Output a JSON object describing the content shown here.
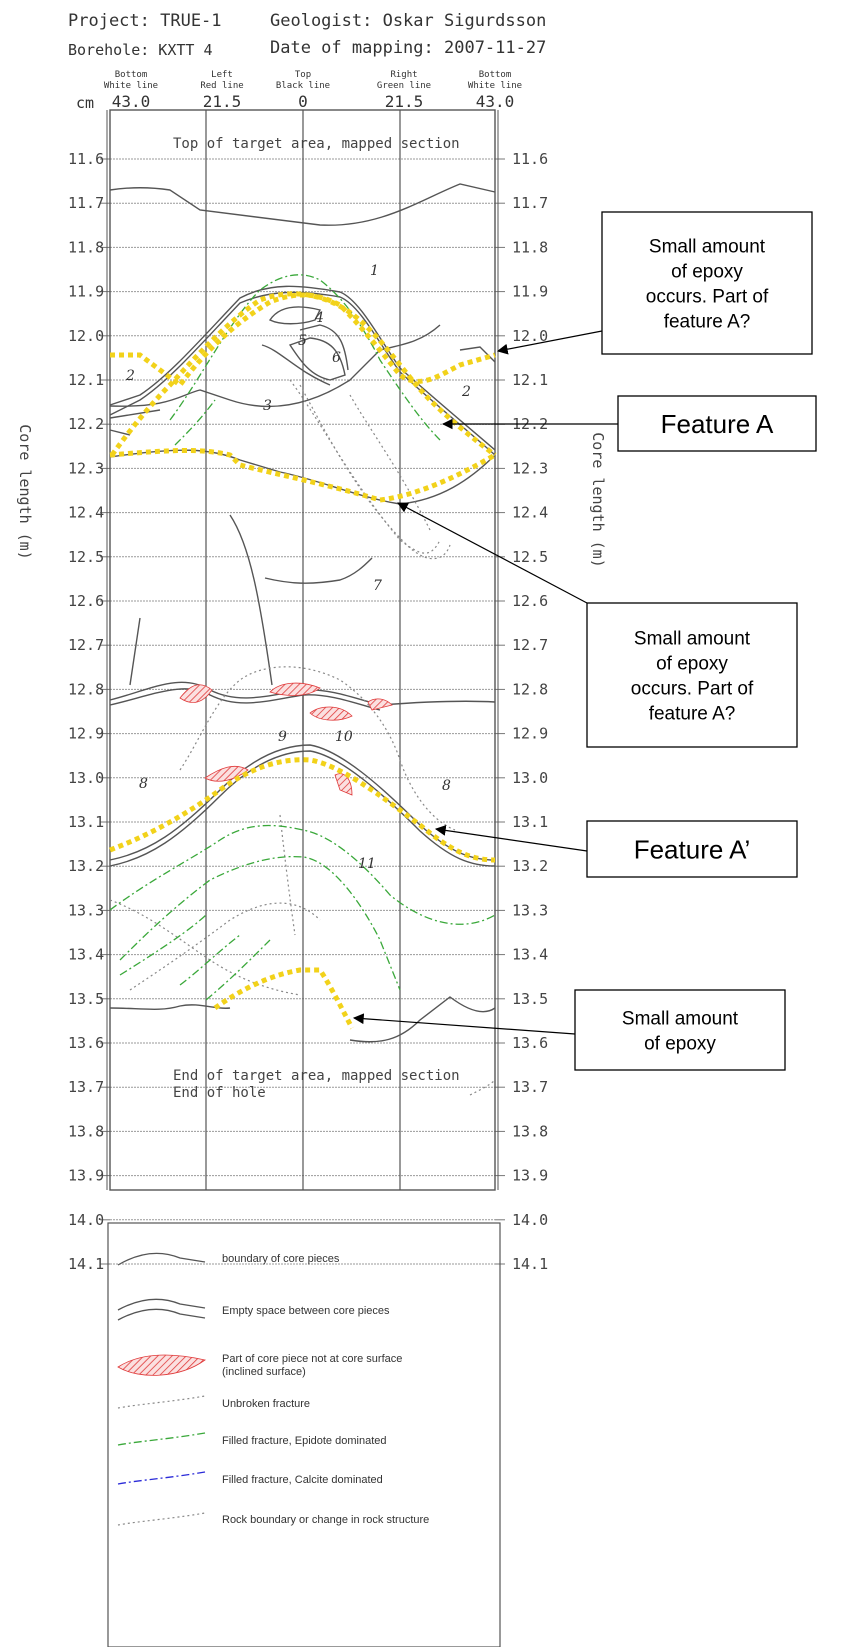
{
  "header": {
    "project": "Project: TRUE-1",
    "geologist": "Geologist: Oskar Sigurdsson",
    "borehole": "Borehole: KXTT 4",
    "date": "Date of mapping: 2007-11-27"
  },
  "columns": [
    {
      "top": "Bottom",
      "line": "White line",
      "value": "43.0"
    },
    {
      "top": "Left",
      "line": "Red line",
      "value": "21.5"
    },
    {
      "top": "Top",
      "line": "Black line",
      "value": "0"
    },
    {
      "top": "Right",
      "line": "Green line",
      "value": "21.5"
    },
    {
      "top": "Bottom",
      "line": "White line",
      "value": "43.0"
    }
  ],
  "unit": "cm",
  "axis_label": "Core length (m)",
  "depths": [
    "11.6",
    "11.7",
    "11.8",
    "11.9",
    "12.0",
    "12.1",
    "12.2",
    "12.3",
    "12.4",
    "12.5",
    "12.6",
    "12.7",
    "12.8",
    "12.9",
    "13.0",
    "13.1",
    "13.2",
    "13.3",
    "13.4",
    "13.5",
    "13.6",
    "13.7",
    "13.8",
    "13.9",
    "14.0",
    "14.1"
  ],
  "notes": {
    "top": "Top of target area, mapped section",
    "end1": "End of target area, mapped section",
    "end2": "End of hole"
  },
  "piece_numbers": [
    "1",
    "2",
    "3",
    "4",
    "5",
    "6",
    "2",
    "7",
    "8",
    "9",
    "10",
    "8",
    "11"
  ],
  "callouts": [
    {
      "lines": [
        "Small amount",
        "of epoxy",
        "occurs. Part of",
        "feature A?"
      ]
    },
    {
      "lines": [
        "Feature A"
      ]
    },
    {
      "lines": [
        "Small amount",
        "of epoxy",
        "occurs. Part of",
        "feature A?"
      ]
    },
    {
      "lines": [
        "Feature A’"
      ]
    },
    {
      "lines": [
        "Small amount",
        "of epoxy"
      ]
    }
  ],
  "legend": [
    "boundary of core pieces",
    "Empty space between core pieces",
    "Part of core piece not at core surface",
    "(inclined surface)",
    "Unbroken fracture",
    "Filled fracture, Epidote dominated",
    "Filled fracture, Calcite dominated",
    "Rock boundary or change in rock structure"
  ],
  "colors": {
    "epoxy": "#f2d21a",
    "epidote": "#3aa83a",
    "calcite": "#2a2ad8",
    "hatch": "#e03a3a",
    "grid": "#9a9a9a"
  }
}
